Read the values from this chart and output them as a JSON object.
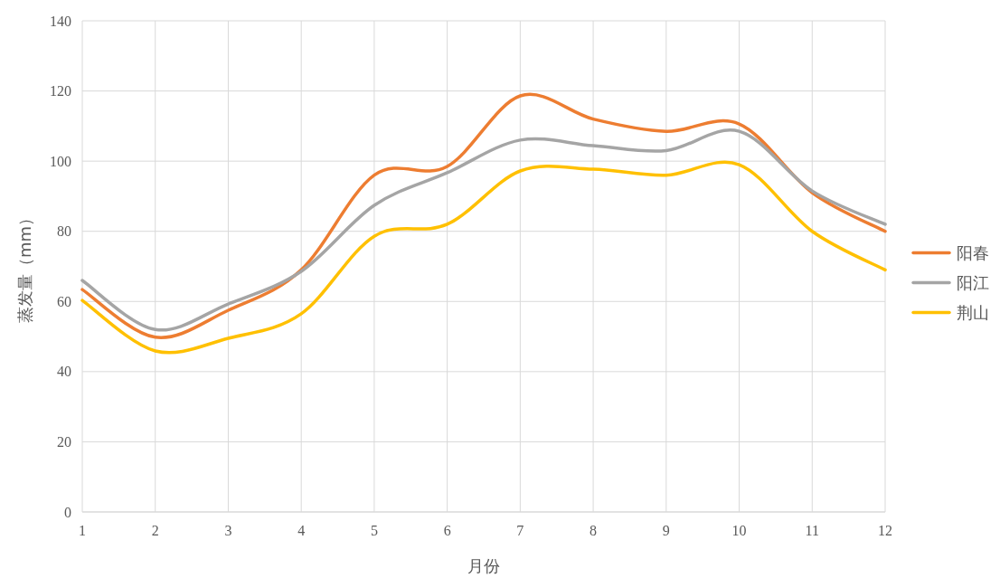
{
  "chart_data": {
    "type": "line",
    "xlabel": "月份",
    "ylabel": "蒸发量（mm）",
    "x": [
      1,
      2,
      3,
      4,
      5,
      6,
      7,
      8,
      9,
      10,
      11,
      12
    ],
    "series": [
      {
        "name": "阳春",
        "color": "#ed7d31",
        "values": [
          63.4,
          49.8,
          57.5,
          69,
          96,
          98.5,
          118.6,
          112,
          108.5,
          110.6,
          91,
          80
        ]
      },
      {
        "name": "阳江",
        "color": "#a5a5a5",
        "values": [
          66,
          52,
          59.3,
          68.6,
          87.4,
          96.7,
          106,
          104.4,
          103,
          108.5,
          91.5,
          82
        ]
      },
      {
        "name": "荆山",
        "color": "#ffc000",
        "values": [
          60.3,
          45.9,
          49.5,
          56.5,
          78.6,
          82,
          97.2,
          97.7,
          96,
          99,
          80,
          69
        ]
      }
    ],
    "xlim": [
      1,
      12
    ],
    "xticks": [
      1,
      2,
      3,
      4,
      5,
      6,
      7,
      8,
      9,
      10,
      11,
      12
    ],
    "ylim": [
      0,
      140
    ],
    "yticks": [
      0,
      20,
      40,
      60,
      80,
      100,
      120,
      140
    ],
    "grid": true,
    "legend": "right"
  }
}
